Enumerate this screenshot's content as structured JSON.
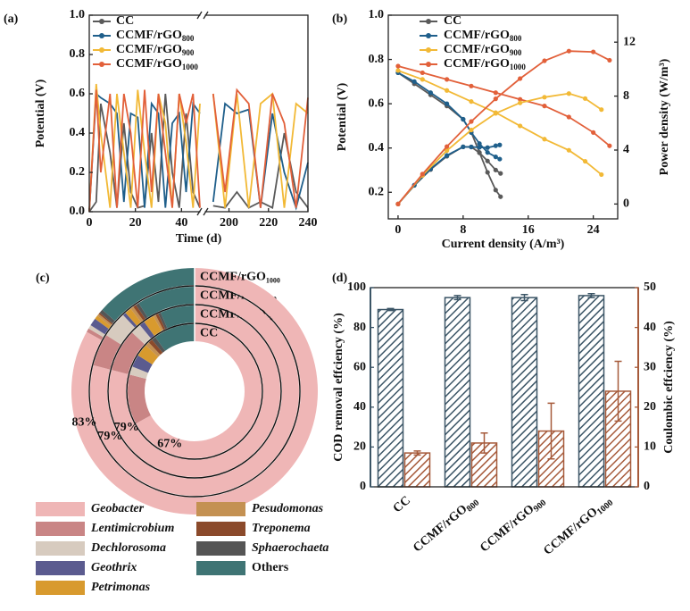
{
  "chart_data": [
    {
      "type": "line",
      "panel_label": "(a)",
      "xlabel": "Time (d)",
      "ylabel": "Potential (V)",
      "xlim_segments": [
        [
          0,
          48
        ],
        [
          188,
          240
        ]
      ],
      "xticks": [
        0,
        20,
        40,
        200,
        220,
        240
      ],
      "ylim": [
        0,
        1
      ],
      "yticks": [
        {
          "value": 0,
          "label": "0.0"
        },
        0.2,
        0.4,
        0.6,
        0.8,
        {
          "value": 1,
          "label": "1.0"
        }
      ],
      "legend": "upper left",
      "x": [
        0,
        3,
        5,
        9,
        12,
        15,
        18,
        21,
        24,
        27,
        30,
        33,
        36,
        39,
        42,
        45,
        48,
        192,
        198,
        204,
        210,
        216,
        222,
        228,
        234,
        240
      ],
      "series": [
        {
          "name": "CC",
          "color": "#5a5a5a",
          "values": [
            0,
            0.05,
            0.55,
            0.3,
            0.02,
            0.45,
            0.1,
            0.02,
            0.03,
            0.4,
            0.05,
            0.6,
            0.2,
            0.02,
            0.5,
            0.1,
            0.02,
            0.03,
            0.02,
            0.1,
            0.02,
            0.05,
            0.02,
            0.4,
            0.1,
            0.02
          ]
        },
        {
          "name": "CCMF/rGO",
          "name_sub": "800",
          "color": "#1f5f8b",
          "values": [
            0,
            0.6,
            0.58,
            0.55,
            0.5,
            0.05,
            0.5,
            0.48,
            0.02,
            0.55,
            0.5,
            0.02,
            0.45,
            0.5,
            0.1,
            0.55,
            0.5,
            0.05,
            0.55,
            0.5,
            0.52,
            0.02,
            0.5,
            0.2,
            0.02,
            0.25
          ]
        },
        {
          "name": "CCMF/rGO",
          "name_sub": "900",
          "color": "#f2b936",
          "values": [
            0,
            0.65,
            0.4,
            0.02,
            0.6,
            0.3,
            0.02,
            0.62,
            0.3,
            0.02,
            0.6,
            0.45,
            0.02,
            0.6,
            0.35,
            0.02,
            0.55,
            0.6,
            0.02,
            0.6,
            0.02,
            0.55,
            0.6,
            0.02,
            0.55,
            0.5
          ]
        },
        {
          "name": "CCMF/rGO",
          "name_sub": "1000",
          "color": "#e2603a",
          "values": [
            0,
            0.62,
            0.2,
            0.6,
            0.02,
            0.6,
            0.4,
            0.02,
            0.62,
            0.1,
            0.6,
            0.3,
            0.02,
            0.6,
            0.45,
            0.6,
            0.02,
            0.6,
            0.1,
            0.62,
            0.55,
            0.02,
            0.6,
            0.45,
            0.02,
            0.58
          ]
        }
      ]
    },
    {
      "type": "line",
      "panel_label": "(b)",
      "xlabel": "Current density (A/m³)",
      "ylabel": "Potential (V)",
      "y2label": "Power density (W/m³)",
      "xlim": [
        -1.2,
        27
      ],
      "xticks": [
        0,
        8,
        16,
        24
      ],
      "ylim": [
        0.08,
        1
      ],
      "yticks": [
        0.2,
        0.4,
        0.6,
        0.8,
        {
          "value": 1,
          "label": "1.0"
        }
      ],
      "y2lim": [
        -1.1,
        14
      ],
      "y2ticks": [
        0,
        4,
        8,
        12
      ],
      "legend": "upper right",
      "series": [
        {
          "name": "CC",
          "color": "#5a5a5a",
          "x": [
            0,
            2,
            4,
            6,
            8,
            9,
            10,
            11,
            12,
            12.6
          ],
          "values": [
            0.74,
            0.69,
            0.64,
            0.59,
            0.53,
            0.47,
            0.38,
            0.29,
            0.21,
            0.18
          ]
        },
        {
          "name": "CCMF/rGO",
          "name_sub": "800",
          "color": "#1f5f8b",
          "x": [
            0,
            2,
            4,
            6,
            8,
            9,
            10,
            11,
            12,
            12.5
          ],
          "values": [
            0.74,
            0.7,
            0.65,
            0.6,
            0.53,
            0.47,
            0.42,
            0.38,
            0.36,
            0.35
          ]
        },
        {
          "name": "CCMF/rGO",
          "name_sub": "900",
          "color": "#f2b936",
          "x": [
            0,
            3,
            6,
            9,
            12,
            15,
            18,
            21,
            23,
            25
          ],
          "values": [
            0.75,
            0.71,
            0.66,
            0.61,
            0.56,
            0.5,
            0.44,
            0.39,
            0.34,
            0.28
          ]
        },
        {
          "name": "CCMF/rGO",
          "name_sub": "1000",
          "color": "#e2603a",
          "x": [
            0,
            3,
            6,
            9,
            12,
            15,
            18,
            21,
            24,
            26
          ],
          "values": [
            0.77,
            0.74,
            0.71,
            0.68,
            0.65,
            0.62,
            0.59,
            0.54,
            0.47,
            0.41
          ]
        },
        {
          "color": "#5a5a5a",
          "axis": "y2",
          "x": [
            0,
            2,
            4,
            6,
            8,
            9,
            10,
            11,
            12,
            12.6
          ],
          "values": [
            0,
            1.38,
            2.56,
            3.54,
            4.24,
            4.23,
            3.8,
            3.19,
            2.52,
            2.27
          ]
        },
        {
          "color": "#1f5f8b",
          "axis": "y2",
          "x": [
            0,
            2,
            4,
            6,
            8,
            9,
            10,
            11,
            12,
            12.5
          ],
          "values": [
            0,
            1.4,
            2.6,
            3.6,
            4.24,
            4.23,
            4.2,
            4.18,
            4.32,
            4.38
          ]
        },
        {
          "color": "#f2b936",
          "axis": "y2",
          "x": [
            0,
            3,
            6,
            9,
            12,
            15,
            18,
            21,
            23,
            25
          ],
          "values": [
            0,
            2.13,
            3.96,
            5.49,
            6.72,
            7.5,
            7.92,
            8.19,
            7.82,
            7.0
          ]
        },
        {
          "color": "#e2603a",
          "axis": "y2",
          "x": [
            0,
            3,
            6,
            9,
            12,
            15,
            18,
            21,
            24,
            26
          ],
          "values": [
            0,
            2.22,
            4.26,
            6.12,
            7.8,
            9.3,
            10.62,
            11.34,
            11.28,
            10.66
          ]
        }
      ]
    },
    {
      "type": "nested-donut",
      "panel_label": "(c)",
      "categories": [
        "Geobacter",
        "Lentimicrobium",
        "Dechlorosoma",
        "Geothrix",
        "Petrimonas",
        "Pesudomonas",
        "Treponema",
        "Sphaerochaeta",
        "Others"
      ],
      "colors": [
        "#efb6b6",
        "#c98585",
        "#d7cbbf",
        "#5b5b8f",
        "#d89a2e",
        "#c49152",
        "#8b4a2b",
        "#555555",
        "#3f7474"
      ],
      "italic": [
        true,
        true,
        true,
        true,
        true,
        true,
        true,
        true,
        false
      ],
      "series": [
        {
          "name": "CC",
          "values": [
            67,
            12,
            2,
            3,
            3,
            1,
            1,
            1,
            10
          ],
          "value_labels": [
            "67%",
            null,
            null,
            null,
            null,
            null,
            null,
            null,
            null
          ]
        },
        {
          "name": "CCMF/rGO",
          "name_sub": "800",
          "values": [
            79,
            8,
            2,
            1,
            2,
            0.5,
            0.5,
            0.5,
            6.5
          ],
          "value_labels": [
            "79%",
            null,
            null,
            null,
            null,
            null,
            null,
            null,
            null
          ]
        },
        {
          "name": "CCMF/rGO",
          "name_sub": "900",
          "values": [
            79,
            5,
            4,
            0.5,
            1,
            0.5,
            0.5,
            0.5,
            9
          ],
          "value_labels": [
            "79%",
            null,
            null,
            null,
            null,
            null,
            null,
            null,
            null
          ]
        },
        {
          "name": "CCMF/rGO",
          "name_sub": "1000",
          "values": [
            83,
            0.5,
            0.5,
            1,
            0.5,
            0.3,
            0.2,
            0.5,
            13.5
          ],
          "value_labels": [
            "83%",
            null,
            null,
            null,
            null,
            null,
            null,
            null,
            null
          ]
        }
      ]
    },
    {
      "type": "bar",
      "panel_label": "(d)",
      "categories": [
        "CC",
        "CCMF/rGO",
        "CCMF/rGO",
        "CCMF/rGO"
      ],
      "category_subs": [
        null,
        "800",
        "900",
        "1000"
      ],
      "ylabel": "COD removal effciency (%)",
      "y2label": "Coulombic effciency (%)",
      "ylim": [
        0,
        100
      ],
      "yticks": [
        0,
        20,
        40,
        60,
        80,
        100
      ],
      "y2lim": [
        0,
        50
      ],
      "y2ticks": [
        0,
        10,
        20,
        30,
        40,
        50
      ],
      "series": [
        {
          "color": "#3b5566",
          "values": [
            89,
            95,
            95,
            96
          ],
          "errors": [
            0.5,
            1,
            1.5,
            1
          ]
        },
        {
          "color": "#a65a3a",
          "axis": "y2",
          "values": [
            8.5,
            11,
            14,
            24
          ],
          "errors": [
            0.5,
            2.5,
            7,
            7.5
          ]
        }
      ]
    }
  ]
}
